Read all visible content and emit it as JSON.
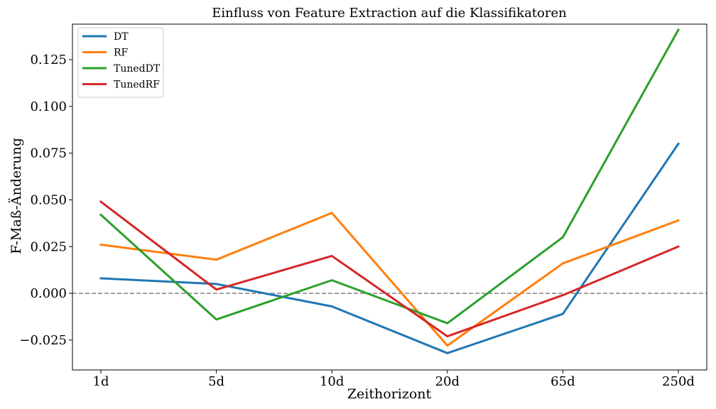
{
  "chart_data": {
    "type": "line",
    "title": "Einfluss von Feature Extraction auf die Klassifikatoren",
    "xlabel": "Zeithorizont",
    "ylabel": "F-Maß-Änderung",
    "categories": [
      "1d",
      "5d",
      "10d",
      "20d",
      "65d",
      "250d"
    ],
    "ylim": [
      -0.041,
      0.144
    ],
    "yticks": [
      -0.025,
      0.0,
      0.025,
      0.05,
      0.075,
      0.1,
      0.125
    ],
    "ytick_labels": [
      "−0.025",
      "0.000",
      "0.025",
      "0.050",
      "0.075",
      "0.100",
      "0.125"
    ],
    "reference_line": {
      "y": 0.0,
      "style": "dashed",
      "color": "#808080"
    },
    "legend_position": "top-left",
    "grid": false,
    "series": [
      {
        "name": "DT",
        "color": "#1f77b4",
        "values": [
          0.008,
          0.005,
          -0.007,
          -0.032,
          -0.011,
          0.08
        ]
      },
      {
        "name": "RF",
        "color": "#ff7f0e",
        "values": [
          0.026,
          0.018,
          0.043,
          -0.028,
          0.016,
          0.039
        ]
      },
      {
        "name": "TunedDT",
        "color": "#2ca02c",
        "values": [
          0.042,
          -0.014,
          0.007,
          -0.016,
          0.03,
          0.141
        ]
      },
      {
        "name": "TunedRF",
        "color": "#d62728",
        "values": [
          0.049,
          0.002,
          0.02,
          -0.023,
          -0.001,
          0.025
        ]
      }
    ]
  }
}
